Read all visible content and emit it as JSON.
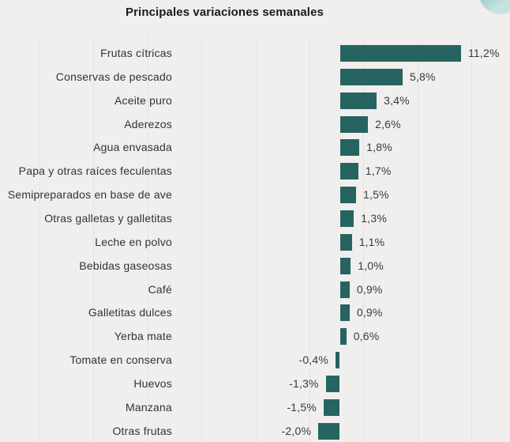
{
  "header": {
    "title": "Principales variaciones semanales"
  },
  "colors": {
    "background": "#f0efed",
    "bar": "#256460",
    "label_text": "#333333",
    "value_text": "#3a3a3a",
    "title_text": "#1b1b1b",
    "gridline": "#e4e3e0",
    "circle_dark": "#7ebbb3",
    "circle_light": "#c6e4df"
  },
  "chart_data": {
    "type": "bar",
    "orientation": "horizontal",
    "title": "Principales variaciones semanales",
    "unit": "%",
    "grid": "faint vertical gridlines, no axis line, no tick labels",
    "legend": "none",
    "value_label_position": "outside bar end (right of positive bars, left of negative bars)",
    "xlim": [
      -3,
      15
    ],
    "categories": [
      "Frutas cítricas",
      "Conservas de pescado",
      "Aceite puro",
      "Aderezos",
      "Agua envasada",
      "Papa y otras raíces feculentas",
      "Semipreparados en base de ave",
      "Otras galletas y galletitas",
      "Leche en polvo",
      "Bebidas gaseosas",
      "Café",
      "Galletitas dulces",
      "Yerba mate",
      "Tomate en conserva",
      "Huevos",
      "Manzana",
      "Otras frutas"
    ],
    "values": [
      11.2,
      5.8,
      3.4,
      2.6,
      1.8,
      1.7,
      1.5,
      1.3,
      1.1,
      1.0,
      0.9,
      0.9,
      0.6,
      -0.4,
      -1.3,
      -1.5,
      -2.0
    ],
    "value_displays": [
      "11,2%",
      "5,8%",
      "3,4%",
      "2,6%",
      "1,8%",
      "1,7%",
      "1,5%",
      "1,3%",
      "1,1%",
      "1,0%",
      "0,9%",
      "0,9%",
      "0,6%",
      "-0,4%",
      "-1,3%",
      "-1,5%",
      "-2,0%"
    ]
  }
}
